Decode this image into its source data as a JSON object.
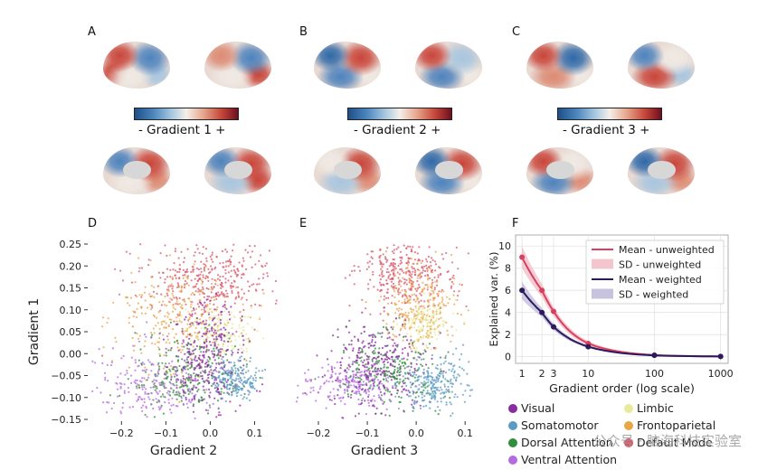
{
  "panels": {
    "a": "A",
    "b": "B",
    "c": "C",
    "d": "D",
    "e": "E",
    "f": "F"
  },
  "colorbars": [
    {
      "minus": "-",
      "label": "Gradient 1",
      "plus": "+"
    },
    {
      "minus": "-",
      "label": "Gradient 2",
      "plus": "+"
    },
    {
      "minus": "-",
      "label": "Gradient 3",
      "plus": "+"
    }
  ],
  "brains": [
    {
      "name": "g1-lateral-left",
      "blotches": [
        "#c9453a",
        "#4d83bd",
        "#f0eae4",
        "#a8c6df",
        "#c9453a"
      ]
    },
    {
      "name": "g1-lateral-right",
      "blotches": [
        "#dd8b74",
        "#4d83bd",
        "#f0eae4",
        "#c9453a"
      ]
    },
    {
      "name": "g1-medial-left",
      "blotches": [
        "#4d83bd",
        "#c9453a",
        "#f0eae4",
        "#dd8b74"
      ]
    },
    {
      "name": "g1-medial-right",
      "blotches": [
        "#4d83bd",
        "#c9453a",
        "#a8c6df",
        "#c9453a"
      ]
    },
    {
      "name": "g2-lateral-left",
      "blotches": [
        "#2f69a8",
        "#c9453a",
        "#4d83bd",
        "#f0eae4"
      ]
    },
    {
      "name": "g2-lateral-right",
      "blotches": [
        "#c9453a",
        "#a8c6df",
        "#4d83bd",
        "#f0eae4"
      ]
    },
    {
      "name": "g2-medial-left",
      "blotches": [
        "#f0eae4",
        "#c9453a",
        "#a8c6df",
        "#dd8b74"
      ]
    },
    {
      "name": "g2-medial-right",
      "blotches": [
        "#2f69a8",
        "#c9453a",
        "#4d83bd",
        "#f0eae4"
      ]
    },
    {
      "name": "g3-lateral-left",
      "blotches": [
        "#c9453a",
        "#2f69a8",
        "#dd8b74",
        "#f0eae4"
      ]
    },
    {
      "name": "g3-lateral-right",
      "blotches": [
        "#4d83bd",
        "#f0eae4",
        "#c9453a",
        "#a8c6df"
      ]
    },
    {
      "name": "g3-medial-left",
      "blotches": [
        "#c9453a",
        "#f0eae4",
        "#4d83bd",
        "#dd8b74"
      ]
    },
    {
      "name": "g3-medial-right",
      "blotches": [
        "#2f69a8",
        "#c9453a",
        "#a8c6df",
        "#dd8b74"
      ]
    }
  ],
  "chart_data": [
    {
      "panel": "D",
      "type": "scatter",
      "xlabel": "Gradient 2",
      "ylabel": "Gradient 1",
      "xlim": [
        -0.27,
        0.15
      ],
      "ylim": [
        -0.15,
        0.25
      ],
      "xticks": [
        -0.2,
        -0.1,
        0.0,
        0.1
      ],
      "xtick_labels": [
        "−0.2",
        "−0.1",
        "0.0",
        "0.1"
      ],
      "yticks": [
        0.25,
        0.2,
        0.15,
        0.1,
        0.05,
        0.0,
        -0.05,
        -0.1,
        -0.15
      ],
      "ytick_labels": [
        "0.25",
        "0.20",
        "0.15",
        "0.10",
        "0.05",
        "0.00",
        "−0.05",
        "−0.10",
        "−0.15"
      ],
      "clusters": [
        {
          "network": "Default Mode",
          "color": "#d9586a",
          "cx": 0.0,
          "cy": 0.17,
          "sx": 0.09,
          "sy": 0.05,
          "n": 420
        },
        {
          "network": "Frontoparietal",
          "color": "#e9a54a",
          "cx": -0.07,
          "cy": 0.08,
          "sx": 0.07,
          "sy": 0.06,
          "n": 300
        },
        {
          "network": "Limbic",
          "color": "#e6ea9a",
          "cx": 0.02,
          "cy": 0.05,
          "sx": 0.04,
          "sy": 0.03,
          "n": 140
        },
        {
          "network": "Dorsal Attention",
          "color": "#2f8f3a",
          "cx": -0.05,
          "cy": -0.05,
          "sx": 0.06,
          "sy": 0.04,
          "n": 260
        },
        {
          "network": "Ventral Attention",
          "color": "#b56be0",
          "cx": -0.12,
          "cy": -0.07,
          "sx": 0.07,
          "sy": 0.05,
          "n": 260
        },
        {
          "network": "Visual",
          "color": "#8a2aa0",
          "cx": 0.0,
          "cy": -0.01,
          "sx": 0.04,
          "sy": 0.06,
          "n": 300
        },
        {
          "network": "Somatomotor",
          "color": "#5b9bc4",
          "cx": 0.06,
          "cy": -0.06,
          "sx": 0.025,
          "sy": 0.02,
          "n": 180
        }
      ]
    },
    {
      "panel": "E",
      "type": "scatter",
      "xlabel": "Gradient 3",
      "ylabel": "",
      "xlim": [
        -0.25,
        0.12
      ],
      "ylim": [
        -0.15,
        0.25
      ],
      "xticks": [
        -0.2,
        -0.1,
        0.0,
        0.1
      ],
      "xtick_labels": [
        "−0.2",
        "−0.1",
        "0.0",
        "0.1"
      ],
      "clusters": [
        {
          "network": "Default Mode",
          "color": "#d9586a",
          "cx": -0.02,
          "cy": 0.18,
          "sx": 0.05,
          "sy": 0.04,
          "n": 340
        },
        {
          "network": "Frontoparietal",
          "color": "#e9a54a",
          "cx": 0.01,
          "cy": 0.1,
          "sx": 0.04,
          "sy": 0.05,
          "n": 260
        },
        {
          "network": "Limbic",
          "color": "#e6ea9a",
          "cx": 0.02,
          "cy": 0.07,
          "sx": 0.02,
          "sy": 0.03,
          "n": 120
        },
        {
          "network": "Dorsal Attention",
          "color": "#2f8f3a",
          "cx": -0.06,
          "cy": -0.04,
          "sx": 0.05,
          "sy": 0.04,
          "n": 240
        },
        {
          "network": "Ventral Attention",
          "color": "#b56be0",
          "cx": -0.13,
          "cy": -0.07,
          "sx": 0.05,
          "sy": 0.03,
          "n": 220
        },
        {
          "network": "Visual",
          "color": "#8a2aa0",
          "cx": -0.08,
          "cy": -0.03,
          "sx": 0.05,
          "sy": 0.05,
          "n": 280
        },
        {
          "network": "Somatomotor",
          "color": "#5b9bc4",
          "cx": 0.04,
          "cy": -0.07,
          "sx": 0.035,
          "sy": 0.03,
          "n": 240
        }
      ]
    },
    {
      "panel": "F",
      "type": "line",
      "xlabel": "Gradient order (log scale)",
      "ylabel": "Explained var. (%)",
      "xscale": "log",
      "xlim": [
        0.8,
        1300
      ],
      "ylim": [
        -0.6,
        11
      ],
      "xticks": [
        1,
        2,
        3,
        10,
        100,
        1000
      ],
      "xtick_labels": [
        "1",
        "2",
        "3",
        "10",
        "100",
        "1000"
      ],
      "yticks": [
        0,
        2,
        4,
        6,
        8,
        10
      ],
      "ytick_labels": [
        "0",
        "2",
        "4",
        "6",
        "8",
        "10"
      ],
      "series": [
        {
          "name": "Mean - unweighted",
          "color": "#d9405e",
          "x": [
            1,
            2,
            3,
            10,
            100,
            1000
          ],
          "y": [
            9.0,
            6.0,
            4.1,
            1.2,
            0.15,
            0.02
          ]
        },
        {
          "name": "SD - unweighted",
          "color": "#f0b8c2",
          "x": [
            1,
            2,
            3,
            10,
            100,
            1000
          ],
          "y_low": [
            8.0,
            5.4,
            3.7,
            1.0,
            0.1,
            0.0
          ],
          "y_high": [
            10.0,
            6.6,
            4.5,
            1.4,
            0.2,
            0.04
          ]
        },
        {
          "name": "Mean - weighted",
          "color": "#2b1b5e",
          "x": [
            1,
            2,
            3,
            10,
            100,
            1000
          ],
          "y": [
            6.0,
            4.0,
            2.7,
            0.9,
            0.12,
            0.02
          ]
        },
        {
          "name": "SD - weighted",
          "color": "#b9b4d6",
          "x": [
            1,
            2,
            3,
            10,
            100,
            1000
          ],
          "y_low": [
            5.2,
            3.6,
            2.4,
            0.8,
            0.1,
            0.0
          ],
          "y_high": [
            6.8,
            4.4,
            3.0,
            1.0,
            0.15,
            0.04
          ]
        }
      ]
    }
  ],
  "networks": [
    {
      "label": "Visual",
      "color": "#8a2aa0"
    },
    {
      "label": "Limbic",
      "color": "#e6ea9a"
    },
    {
      "label": "Somatomotor",
      "color": "#5b9bc4"
    },
    {
      "label": "Frontoparietal",
      "color": "#e9a54a"
    },
    {
      "label": "Dorsal Attention",
      "color": "#2f8f3a"
    },
    {
      "label": "Default Mode",
      "color": "#d9586a"
    },
    {
      "label": "Ventral Attention",
      "color": "#b56be0"
    }
  ],
  "watermark": "公众号 · 脑海科技实验室"
}
